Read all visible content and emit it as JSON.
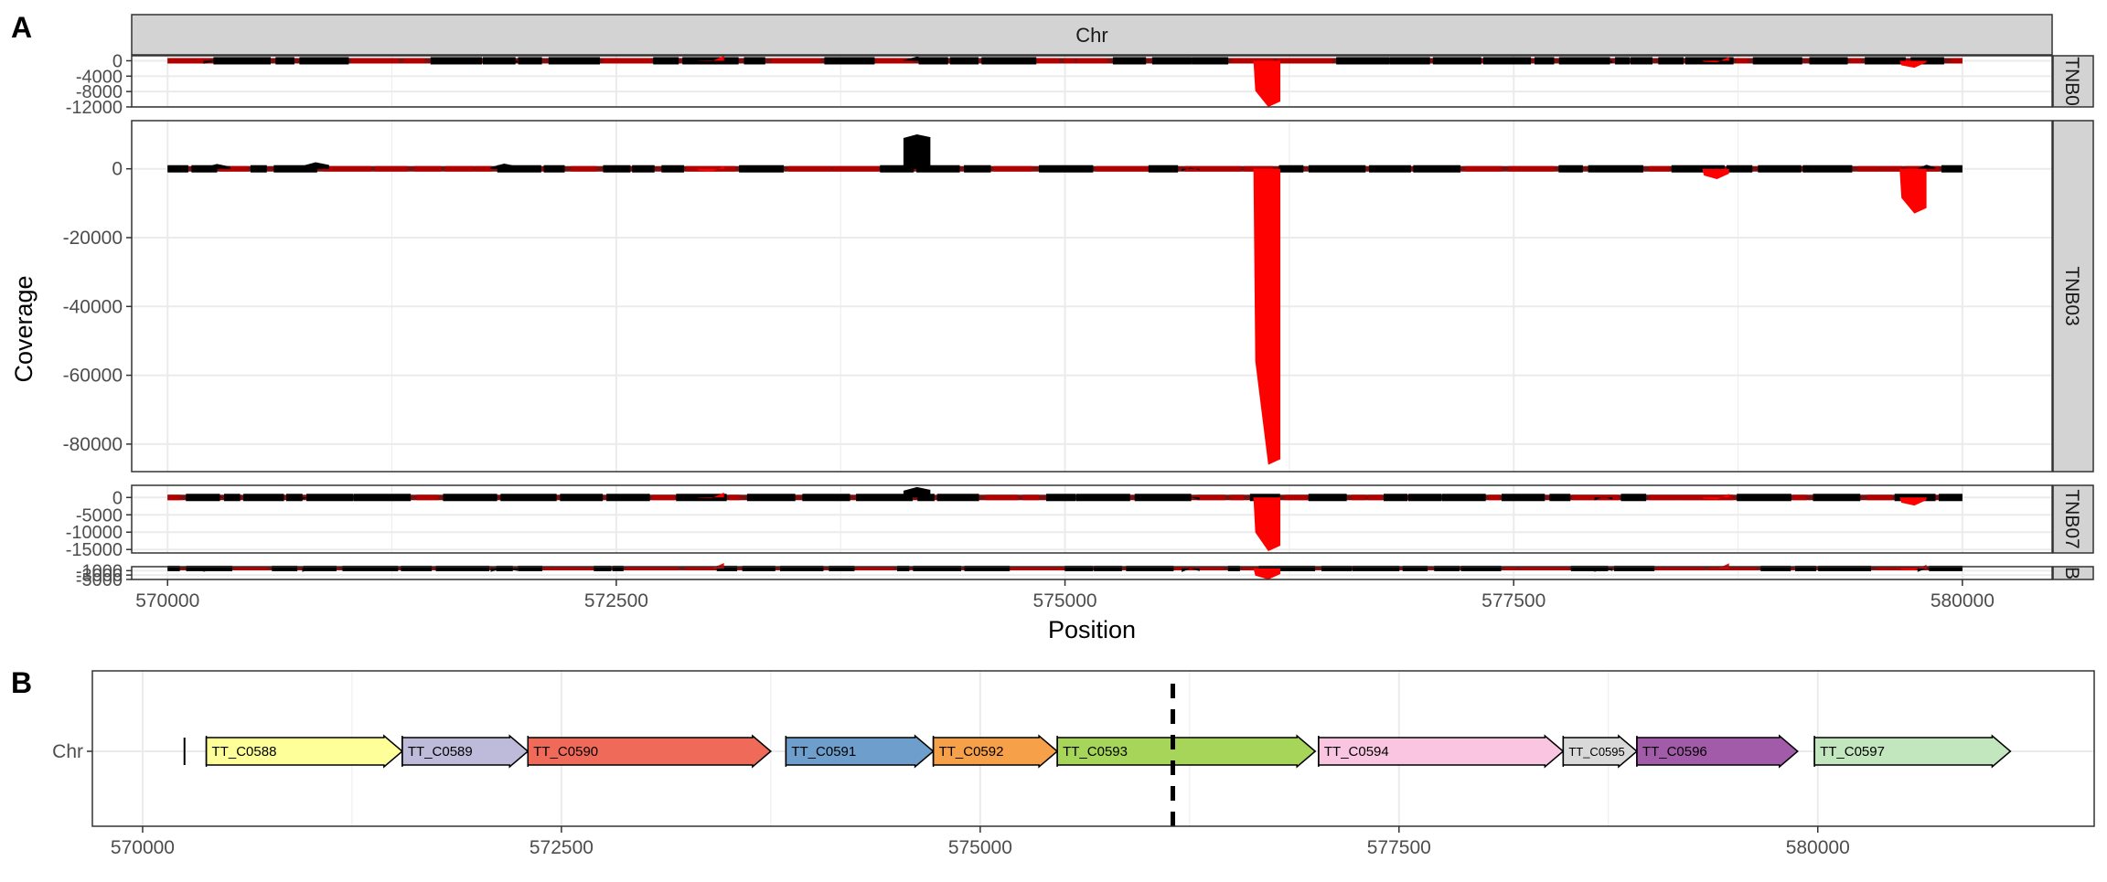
{
  "panel_labels": {
    "a": "A",
    "b": "B"
  },
  "colors": {
    "plus_strand": "#000000",
    "minus_strand": "#ff0000",
    "reference_line": "#7a1010",
    "strip_fill": "#d3d3d3",
    "grid": "#ebebeb"
  },
  "chart_data": [
    {
      "type": "area",
      "facet_column": "Chr",
      "xlabel": "Position",
      "ylabel": "Coverage",
      "xlim": [
        569800,
        580500
      ],
      "x_ticks": [
        570000,
        572500,
        575000,
        577500,
        580000
      ],
      "x_tick_labels": [
        "570000",
        "572500",
        "575000",
        "577500",
        "580000"
      ],
      "grid": true,
      "facets": [
        {
          "label": "TNB0",
          "ylim": [
            -12000,
            1300
          ],
          "y_ticks": [
            0,
            -4000,
            -8000,
            -12000
          ],
          "y_tick_labels": [
            "0",
            "-4000",
            "-8000",
            "-12000"
          ]
        },
        {
          "label": "TNB03",
          "ylim": [
            -88000,
            14000
          ],
          "y_ticks": [
            0,
            -20000,
            -40000,
            -60000,
            -80000
          ],
          "y_tick_labels": [
            "0",
            "-20000",
            "-40000",
            "-60000",
            "-80000"
          ]
        },
        {
          "label": "TNB07",
          "ylim": [
            -16000,
            3500
          ],
          "y_ticks": [
            0,
            -5000,
            -10000,
            -15000
          ],
          "y_tick_labels": [
            "0",
            "-5000",
            "-10000",
            "-15000"
          ]
        },
        {
          "label": "B",
          "ylim": [
            -5000,
            800
          ],
          "y_ticks": [
            -1000,
            -3000,
            -5000
          ],
          "y_tick_labels": [
            "-1000",
            "-3000",
            "-5000"
          ]
        }
      ],
      "series": [
        {
          "name": "plus",
          "color": "#000000",
          "facet_scale": [
            0.11,
            1,
            0.3,
            0.08
          ],
          "peaks": [
            {
              "x0": 570200,
              "x1": 570350,
              "y": 1400
            },
            {
              "x0": 570750,
              "x1": 570900,
              "y": 1900
            },
            {
              "x0": 571800,
              "x1": 571950,
              "y": 1500
            },
            {
              "x0": 574100,
              "x1": 574250,
              "y": 10000
            },
            {
              "x0": 575650,
              "x1": 575750,
              "y": 400
            },
            {
              "x0": 577950,
              "x1": 578050,
              "y": 700
            },
            {
              "x0": 579750,
              "x1": 579850,
              "y": 1200
            }
          ]
        },
        {
          "name": "minus",
          "color": "#ff0000",
          "facet_scale": [
            0.14,
            1,
            0.18,
            0.06
          ],
          "peaks": [
            {
              "x0": 572950,
              "x1": 573100,
              "y": -800
            },
            {
              "x0": 576050,
              "x1": 576200,
              "y": -86000
            },
            {
              "x0": 578550,
              "x1": 578700,
              "y": -3000
            },
            {
              "x0": 579650,
              "x1": 579800,
              "y": -13000
            }
          ]
        }
      ]
    },
    {
      "type": "gene_map",
      "row_label": "Chr",
      "xlim": [
        569700,
        581650
      ],
      "x_ticks": [
        570000,
        572500,
        575000,
        577500,
        580000
      ],
      "x_tick_labels": [
        "570000",
        "572500",
        "575000",
        "577500",
        "580000"
      ],
      "marker_x": 576150,
      "genes": [
        {
          "name": "TT_C0588",
          "start": 570380,
          "end": 571550,
          "color": "#ffff99"
        },
        {
          "name": "TT_C0589",
          "start": 571550,
          "end": 572300,
          "color": "#bebada"
        },
        {
          "name": "TT_C0590",
          "start": 572300,
          "end": 573750,
          "color": "#f06a5a"
        },
        {
          "name": "TT_C0591",
          "start": 573840,
          "end": 574720,
          "color": "#6e9ecb"
        },
        {
          "name": "TT_C0592",
          "start": 574720,
          "end": 575460,
          "color": "#f7a04a"
        },
        {
          "name": "TT_C0593",
          "start": 575460,
          "end": 577000,
          "color": "#a6d55a"
        },
        {
          "name": "TT_C0594",
          "start": 577020,
          "end": 578480,
          "color": "#f9c5e0"
        },
        {
          "name": "TT_C0595",
          "start": 578480,
          "end": 578920,
          "color": "#d9d9d9"
        },
        {
          "name": "TT_C0596",
          "start": 578920,
          "end": 579880,
          "color": "#a25ba8"
        },
        {
          "name": "TT_C0597",
          "start": 579980,
          "end": 581150,
          "color": "#c2e6be"
        }
      ]
    }
  ]
}
